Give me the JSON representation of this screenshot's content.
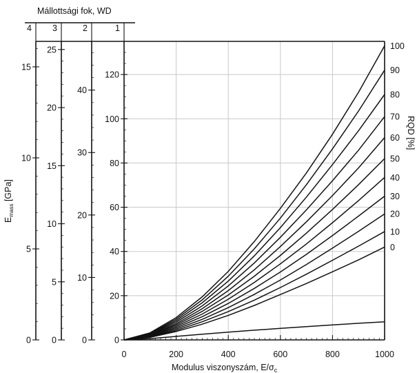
{
  "chart_data": {
    "type": "line",
    "title": "",
    "xlabel": "Modulus viszonyszám, E/σ",
    "xlabel_subscript": "c",
    "xlim": [
      0,
      1000
    ],
    "xticks": [
      "0",
      "200",
      "400",
      "600",
      "800",
      "1000"
    ],
    "ylim": [
      0,
      135
    ],
    "yticks": [
      "0",
      "20",
      "40",
      "60",
      "80",
      "100",
      "120"
    ],
    "grid": true,
    "top_axis": {
      "label": "Mállottsági fok, WD",
      "ticks": [
        "4",
        "3",
        "2",
        "1"
      ]
    },
    "emass_axis": {
      "label_main": "E",
      "label_sub": "mass",
      "label_rest": " [GPa]",
      "ticks": [
        "0",
        "5",
        "10",
        "15"
      ]
    },
    "wd3_axis": {
      "ticks": [
        "0",
        "5",
        "10",
        "15",
        "20",
        "25"
      ]
    },
    "wd2_axis": {
      "ticks": [
        "0",
        "10",
        "20",
        "30",
        "40"
      ]
    },
    "rqd_axis": {
      "label": "RQD [%]",
      "ticks": [
        "0",
        "10",
        "20",
        "30",
        "40",
        "50",
        "60",
        "70",
        "80",
        "90",
        "100"
      ]
    },
    "x": [
      0,
      100,
      200,
      300,
      400,
      500,
      600,
      700,
      800,
      900,
      1000
    ],
    "series": [
      {
        "name": "100",
        "values": [
          0,
          3.2,
          10.1,
          19.5,
          31,
          44.5,
          59.5,
          75.5,
          93,
          112,
          133
        ]
      },
      {
        "name": "90",
        "values": [
          0,
          2.9,
          9.4,
          18.1,
          28.8,
          41.2,
          55.1,
          70.2,
          86.4,
          103.5,
          122
        ]
      },
      {
        "name": "80",
        "values": [
          0,
          2.7,
          8.7,
          16.8,
          26.6,
          38,
          50.8,
          64.6,
          79.3,
          94.6,
          111
        ]
      },
      {
        "name": "70",
        "values": [
          0,
          2.5,
          8,
          15.4,
          24.4,
          34.8,
          46.4,
          58.8,
          72,
          85.8,
          101
        ]
      },
      {
        "name": "60",
        "values": [
          0,
          2.3,
          7.3,
          14.1,
          22.3,
          31.7,
          42.2,
          53.4,
          65.3,
          77.8,
          91.5
        ]
      },
      {
        "name": "50",
        "values": [
          0,
          2.1,
          6.7,
          12.9,
          20.3,
          28.8,
          38.2,
          48.3,
          59,
          70.2,
          82
        ]
      },
      {
        "name": "40",
        "values": [
          0,
          1.9,
          6.1,
          11.7,
          18.4,
          26,
          34.4,
          43.4,
          53,
          63,
          73.5
        ]
      },
      {
        "name": "30",
        "values": [
          0,
          1.7,
          5.5,
          10.5,
          16.5,
          23.3,
          30.7,
          38.7,
          47.2,
          56,
          65
        ]
      },
      {
        "name": "20",
        "values": [
          0,
          1.5,
          4.9,
          9.3,
          14.6,
          20.6,
          27.1,
          34.1,
          41.5,
          49.1,
          57
        ]
      },
      {
        "name": "10",
        "values": [
          0,
          1.4,
          4.3,
          8.2,
          12.8,
          18,
          23.7,
          29.7,
          36,
          42.4,
          49
        ]
      },
      {
        "name": "0",
        "values": [
          0,
          1.2,
          3.8,
          7.1,
          11.1,
          15.6,
          20.5,
          25.5,
          30.8,
          36.2,
          42
        ]
      }
    ],
    "baseline_series": {
      "values": [
        0,
        0.6,
        1.6,
        2.6,
        3.5,
        4.4,
        5.2,
        6,
        6.8,
        7.5,
        8.2
      ]
    }
  }
}
